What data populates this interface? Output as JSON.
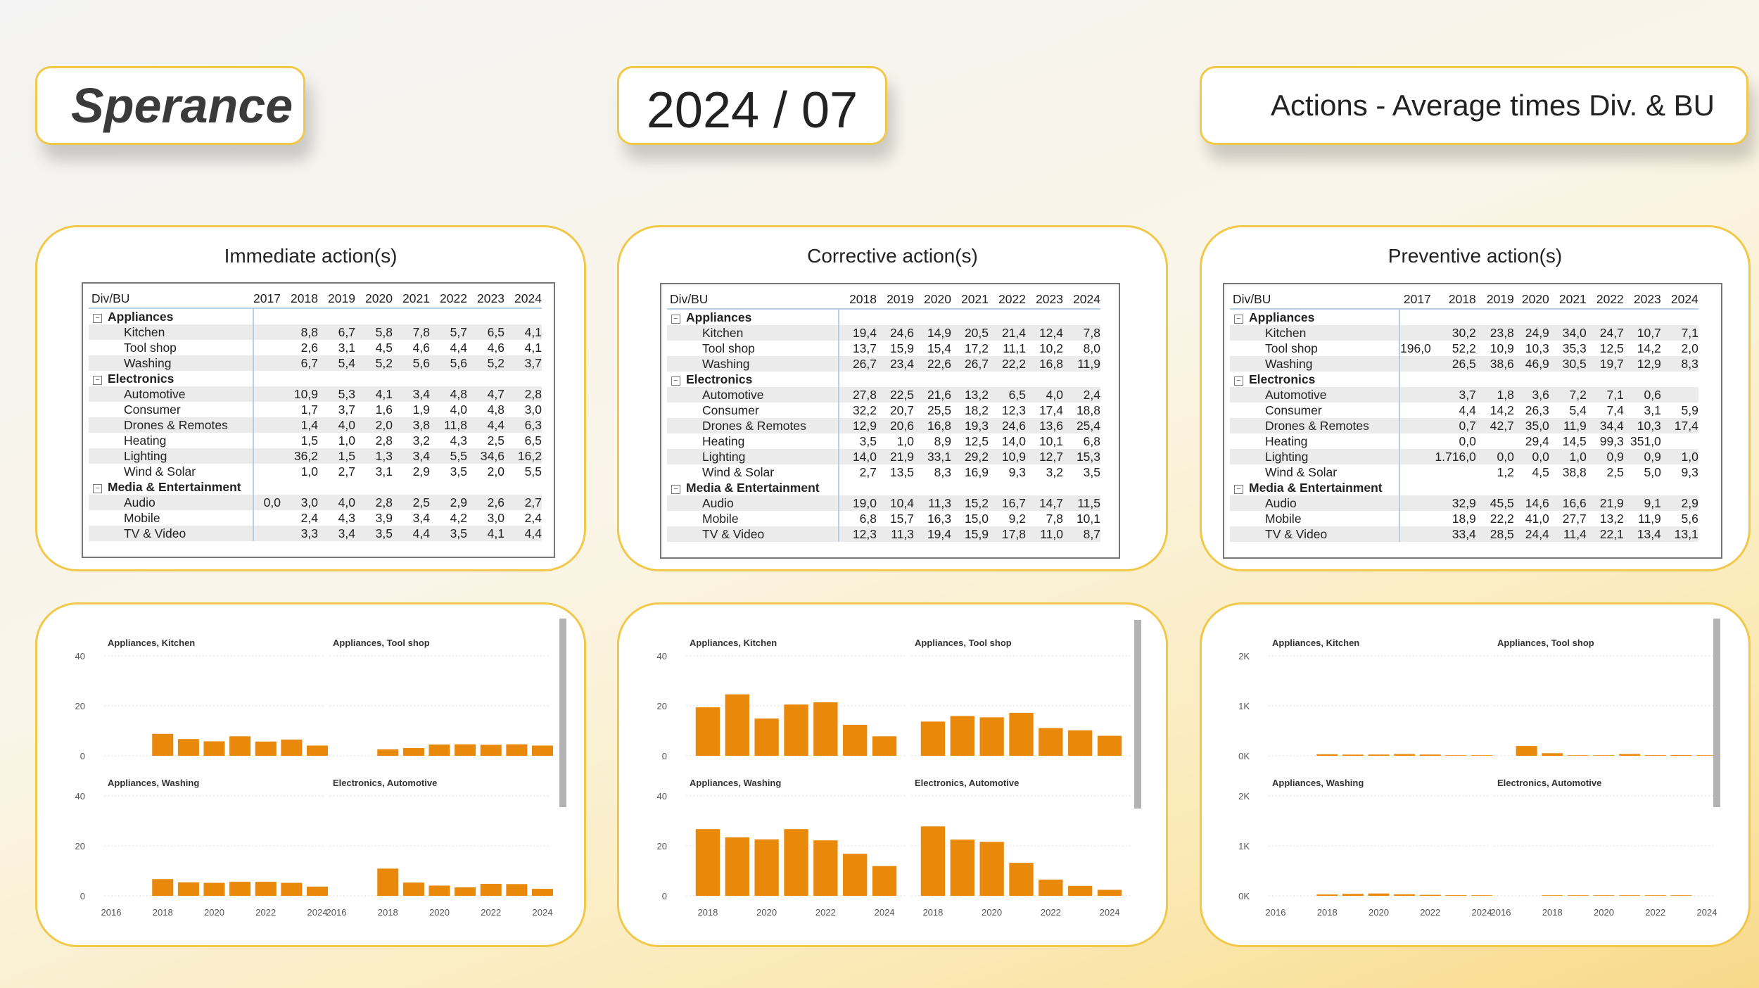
{
  "header": {
    "logo": "Sperance",
    "period": "2024 / 07",
    "page_title": "Actions - Average times Div. & BU"
  },
  "matrix_columns": [
    "Div/BU",
    "2017",
    "2018",
    "2019",
    "2020",
    "2021",
    "2022",
    "2023",
    "2024"
  ],
  "matrix_columns_corrective": [
    "Div/BU",
    "2018",
    "2019",
    "2020",
    "2021",
    "2022",
    "2023",
    "2024"
  ],
  "panels": [
    {
      "title": "Immediate action(s)",
      "rows": [
        {
          "type": "group",
          "label": "Appliances",
          "values": []
        },
        {
          "type": "item",
          "label": "Kitchen",
          "values": [
            "",
            "8,8",
            "6,7",
            "5,8",
            "7,8",
            "5,7",
            "6,5",
            "4,1"
          ]
        },
        {
          "type": "item",
          "label": "Tool shop",
          "values": [
            "",
            "2,6",
            "3,1",
            "4,5",
            "4,6",
            "4,4",
            "4,6",
            "4,1"
          ]
        },
        {
          "type": "item",
          "label": "Washing",
          "values": [
            "",
            "6,7",
            "5,4",
            "5,2",
            "5,6",
            "5,6",
            "5,2",
            "3,7"
          ]
        },
        {
          "type": "group",
          "label": "Electronics",
          "values": []
        },
        {
          "type": "item",
          "label": "Automotive",
          "values": [
            "",
            "10,9",
            "5,3",
            "4,1",
            "3,4",
            "4,8",
            "4,7",
            "2,8"
          ]
        },
        {
          "type": "item",
          "label": "Consumer",
          "values": [
            "",
            "1,7",
            "3,7",
            "1,6",
            "1,9",
            "4,0",
            "4,8",
            "3,0"
          ]
        },
        {
          "type": "item",
          "label": "Drones & Remotes",
          "values": [
            "",
            "1,4",
            "4,0",
            "2,0",
            "3,8",
            "11,8",
            "4,4",
            "6,3"
          ]
        },
        {
          "type": "item",
          "label": "Heating",
          "values": [
            "",
            "1,5",
            "1,0",
            "2,8",
            "3,2",
            "4,3",
            "2,5",
            "6,5"
          ]
        },
        {
          "type": "item",
          "label": "Lighting",
          "values": [
            "",
            "36,2",
            "1,5",
            "1,3",
            "3,4",
            "5,5",
            "34,6",
            "16,2"
          ]
        },
        {
          "type": "item",
          "label": "Wind & Solar",
          "values": [
            "",
            "1,0",
            "2,7",
            "3,1",
            "2,9",
            "3,5",
            "2,0",
            "5,5"
          ]
        },
        {
          "type": "group",
          "label": "Media & Entertainment",
          "values": []
        },
        {
          "type": "item",
          "label": "Audio",
          "values": [
            "0,0",
            "3,0",
            "4,0",
            "2,8",
            "2,5",
            "2,9",
            "2,6",
            "2,7"
          ]
        },
        {
          "type": "item",
          "label": "Mobile",
          "values": [
            "",
            "2,4",
            "4,3",
            "3,9",
            "3,4",
            "4,2",
            "3,0",
            "2,4"
          ]
        },
        {
          "type": "item",
          "label": "TV & Video",
          "values": [
            "",
            "3,3",
            "3,4",
            "3,5",
            "4,4",
            "3,5",
            "4,1",
            "4,4"
          ]
        }
      ]
    },
    {
      "title": "Corrective action(s)",
      "rows": [
        {
          "type": "group",
          "label": "Appliances",
          "values": []
        },
        {
          "type": "item",
          "label": "Kitchen",
          "values": [
            "19,4",
            "24,6",
            "14,9",
            "20,5",
            "21,4",
            "12,4",
            "7,8"
          ]
        },
        {
          "type": "item",
          "label": "Tool shop",
          "values": [
            "13,7",
            "15,9",
            "15,4",
            "17,2",
            "11,1",
            "10,2",
            "8,0"
          ]
        },
        {
          "type": "item",
          "label": "Washing",
          "values": [
            "26,7",
            "23,4",
            "22,6",
            "26,7",
            "22,2",
            "16,8",
            "11,9"
          ]
        },
        {
          "type": "group",
          "label": "Electronics",
          "values": []
        },
        {
          "type": "item",
          "label": "Automotive",
          "values": [
            "27,8",
            "22,5",
            "21,6",
            "13,2",
            "6,5",
            "4,0",
            "2,4"
          ]
        },
        {
          "type": "item",
          "label": "Consumer",
          "values": [
            "32,2",
            "20,7",
            "25,5",
            "18,2",
            "12,3",
            "17,4",
            "18,8"
          ]
        },
        {
          "type": "item",
          "label": "Drones & Remotes",
          "values": [
            "12,9",
            "20,6",
            "16,8",
            "19,3",
            "24,6",
            "13,6",
            "25,4"
          ]
        },
        {
          "type": "item",
          "label": "Heating",
          "values": [
            "3,5",
            "1,0",
            "8,9",
            "12,5",
            "14,0",
            "10,1",
            "6,8"
          ]
        },
        {
          "type": "item",
          "label": "Lighting",
          "values": [
            "14,0",
            "21,9",
            "33,1",
            "29,2",
            "10,9",
            "12,7",
            "15,3"
          ]
        },
        {
          "type": "item",
          "label": "Wind & Solar",
          "values": [
            "2,7",
            "13,5",
            "8,3",
            "16,9",
            "9,3",
            "3,2",
            "3,5"
          ]
        },
        {
          "type": "group",
          "label": "Media & Entertainment",
          "values": []
        },
        {
          "type": "item",
          "label": "Audio",
          "values": [
            "19,0",
            "10,4",
            "11,3",
            "15,2",
            "16,7",
            "14,7",
            "11,5"
          ]
        },
        {
          "type": "item",
          "label": "Mobile",
          "values": [
            "6,8",
            "15,7",
            "16,3",
            "15,0",
            "9,2",
            "7,8",
            "10,1"
          ]
        },
        {
          "type": "item",
          "label": "TV & Video",
          "values": [
            "12,3",
            "11,3",
            "19,4",
            "15,9",
            "17,8",
            "11,0",
            "8,7"
          ]
        }
      ]
    },
    {
      "title": "Preventive action(s)",
      "rows": [
        {
          "type": "group",
          "label": "Appliances",
          "values": []
        },
        {
          "type": "item",
          "label": "Kitchen",
          "values": [
            "",
            "30,2",
            "23,8",
            "24,9",
            "34,0",
            "24,7",
            "10,7",
            "7,1"
          ]
        },
        {
          "type": "item",
          "label": "Tool shop",
          "values": [
            "196,0",
            "52,2",
            "10,9",
            "10,3",
            "35,3",
            "12,5",
            "14,2",
            "2,0"
          ]
        },
        {
          "type": "item",
          "label": "Washing",
          "values": [
            "",
            "26,5",
            "38,6",
            "46,9",
            "30,5",
            "19,7",
            "12,9",
            "8,3"
          ]
        },
        {
          "type": "group",
          "label": "Electronics",
          "values": []
        },
        {
          "type": "item",
          "label": "Automotive",
          "values": [
            "",
            "3,7",
            "1,8",
            "3,6",
            "7,2",
            "7,1",
            "0,6",
            ""
          ]
        },
        {
          "type": "item",
          "label": "Consumer",
          "values": [
            "",
            "4,4",
            "14,2",
            "26,3",
            "5,4",
            "7,4",
            "3,1",
            "5,9"
          ]
        },
        {
          "type": "item",
          "label": "Drones & Remotes",
          "values": [
            "",
            "0,7",
            "42,7",
            "35,0",
            "11,9",
            "34,4",
            "10,3",
            "17,4"
          ]
        },
        {
          "type": "item",
          "label": "Heating",
          "values": [
            "",
            "0,0",
            "",
            "29,4",
            "14,5",
            "99,3",
            "351,0",
            ""
          ]
        },
        {
          "type": "item",
          "label": "Lighting",
          "values": [
            "",
            "1.716,0",
            "0,0",
            "0,0",
            "1,0",
            "0,9",
            "0,9",
            "1,0"
          ]
        },
        {
          "type": "item",
          "label": "Wind & Solar",
          "values": [
            "",
            "",
            "1,2",
            "4,5",
            "38,8",
            "2,5",
            "5,0",
            "9,3"
          ]
        },
        {
          "type": "group",
          "label": "Media & Entertainment",
          "values": []
        },
        {
          "type": "item",
          "label": "Audio",
          "values": [
            "",
            "32,9",
            "45,5",
            "14,6",
            "16,6",
            "21,9",
            "9,1",
            "2,9"
          ]
        },
        {
          "type": "item",
          "label": "Mobile",
          "values": [
            "",
            "18,9",
            "22,2",
            "41,0",
            "27,7",
            "13,2",
            "11,9",
            "5,6"
          ]
        },
        {
          "type": "item",
          "label": "TV & Video",
          "values": [
            "",
            "33,4",
            "28,5",
            "24,4",
            "11,4",
            "22,1",
            "13,4",
            "13,1"
          ]
        }
      ]
    }
  ],
  "chart_data": [
    {
      "type": "bar",
      "panel": "Immediate action(s)",
      "bar_color": "#E8890C",
      "ylim": [
        0,
        40
      ],
      "yticks": [
        "0",
        "20",
        "40"
      ],
      "xticks": [
        "2016",
        "2018",
        "2020",
        "2022",
        "2024"
      ],
      "facets": [
        {
          "title": "Appliances, Kitchen",
          "x": [
            2018,
            2019,
            2020,
            2021,
            2022,
            2023,
            2024
          ],
          "values": [
            8.8,
            6.7,
            5.8,
            7.8,
            5.7,
            6.5,
            4.1
          ]
        },
        {
          "title": "Appliances, Tool shop",
          "x": [
            2018,
            2019,
            2020,
            2021,
            2022,
            2023,
            2024
          ],
          "values": [
            2.6,
            3.1,
            4.5,
            4.6,
            4.4,
            4.6,
            4.1
          ]
        },
        {
          "title": "Appliances, Washing",
          "x": [
            2018,
            2019,
            2020,
            2021,
            2022,
            2023,
            2024
          ],
          "values": [
            6.7,
            5.4,
            5.2,
            5.6,
            5.6,
            5.2,
            3.7
          ]
        },
        {
          "title": "Electronics, Automotive",
          "x": [
            2018,
            2019,
            2020,
            2021,
            2022,
            2023,
            2024
          ],
          "values": [
            10.9,
            5.3,
            4.1,
            3.4,
            4.8,
            4.7,
            2.8
          ]
        }
      ]
    },
    {
      "type": "bar",
      "panel": "Corrective action(s)",
      "bar_color": "#E8890C",
      "ylim": [
        0,
        40
      ],
      "yticks": [
        "0",
        "20",
        "40"
      ],
      "xticks": [
        "2018",
        "2020",
        "2022",
        "2024"
      ],
      "facets": [
        {
          "title": "Appliances, Kitchen",
          "x": [
            2018,
            2019,
            2020,
            2021,
            2022,
            2023,
            2024
          ],
          "values": [
            19.4,
            24.6,
            14.9,
            20.5,
            21.4,
            12.4,
            7.8
          ]
        },
        {
          "title": "Appliances, Tool shop",
          "x": [
            2018,
            2019,
            2020,
            2021,
            2022,
            2023,
            2024
          ],
          "values": [
            13.7,
            15.9,
            15.4,
            17.2,
            11.1,
            10.2,
            8.0
          ]
        },
        {
          "title": "Appliances, Washing",
          "x": [
            2018,
            2019,
            2020,
            2021,
            2022,
            2023,
            2024
          ],
          "values": [
            26.7,
            23.4,
            22.6,
            26.7,
            22.2,
            16.8,
            11.9
          ]
        },
        {
          "title": "Electronics, Automotive",
          "x": [
            2018,
            2019,
            2020,
            2021,
            2022,
            2023,
            2024
          ],
          "values": [
            27.8,
            22.5,
            21.6,
            13.2,
            6.5,
            4.0,
            2.4
          ]
        }
      ]
    },
    {
      "type": "bar",
      "panel": "Preventive action(s)",
      "bar_color": "#E8890C",
      "ylim": [
        0,
        2000
      ],
      "yticks": [
        "0K",
        "1K",
        "2K"
      ],
      "xticks": [
        "2016",
        "2018",
        "2020",
        "2022",
        "2024"
      ],
      "facets": [
        {
          "title": "Appliances, Kitchen",
          "x": [
            2018,
            2019,
            2020,
            2021,
            2022,
            2023,
            2024
          ],
          "values": [
            30.2,
            23.8,
            24.9,
            34.0,
            24.7,
            10.7,
            7.1
          ]
        },
        {
          "title": "Appliances, Tool shop",
          "x": [
            2017,
            2018,
            2019,
            2020,
            2021,
            2022,
            2023,
            2024
          ],
          "values": [
            196.0,
            52.2,
            10.9,
            10.3,
            35.3,
            12.5,
            14.2,
            2.0
          ]
        },
        {
          "title": "Appliances, Washing",
          "x": [
            2018,
            2019,
            2020,
            2021,
            2022,
            2023,
            2024
          ],
          "values": [
            26.5,
            38.6,
            46.9,
            30.5,
            19.7,
            12.9,
            8.3
          ]
        },
        {
          "title": "Electronics, Automotive",
          "x": [
            2018,
            2019,
            2020,
            2021,
            2022,
            2023
          ],
          "values": [
            3.7,
            1.8,
            3.6,
            7.2,
            7.1,
            0.6
          ]
        }
      ]
    }
  ]
}
